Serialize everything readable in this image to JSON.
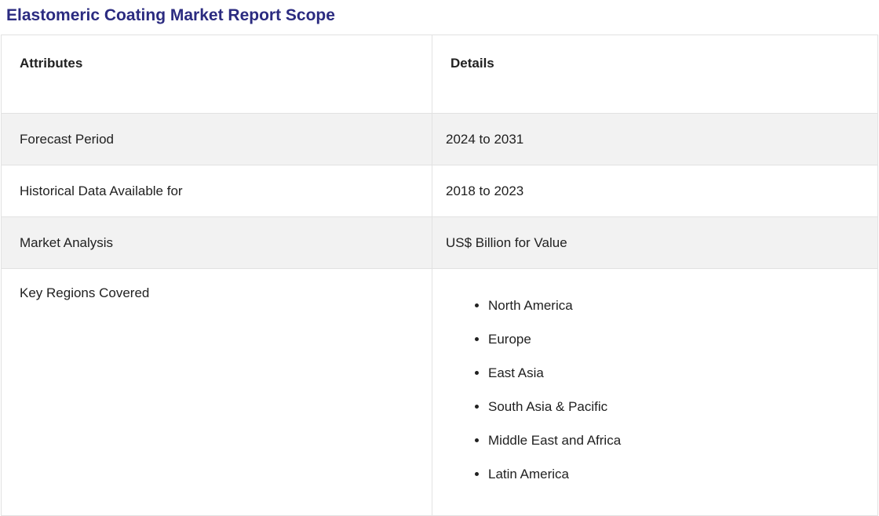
{
  "colors": {
    "title-color": "#2b2b80",
    "stripe": "#f2f2f2",
    "border": "#e2e2e2",
    "text": "#212121",
    "bg": "#ffffff"
  },
  "page": {
    "title": "Elastomeric Coating Market Report Scope"
  },
  "table": {
    "headers": [
      "Attributes",
      "Details"
    ],
    "rows": [
      {
        "attribute": "Forecast Period",
        "detail": "2024 to 2031"
      },
      {
        "attribute": "Historical Data Available for",
        "detail": "2018 to 2023"
      },
      {
        "attribute": "Market Analysis",
        "detail": "US$ Billion for Value"
      },
      {
        "attribute": "Key Regions Covered",
        "detail_list": [
          "North America",
          "Europe",
          "East Asia",
          "South Asia & Pacific",
          "Middle East and Africa",
          "Latin America"
        ]
      }
    ]
  }
}
